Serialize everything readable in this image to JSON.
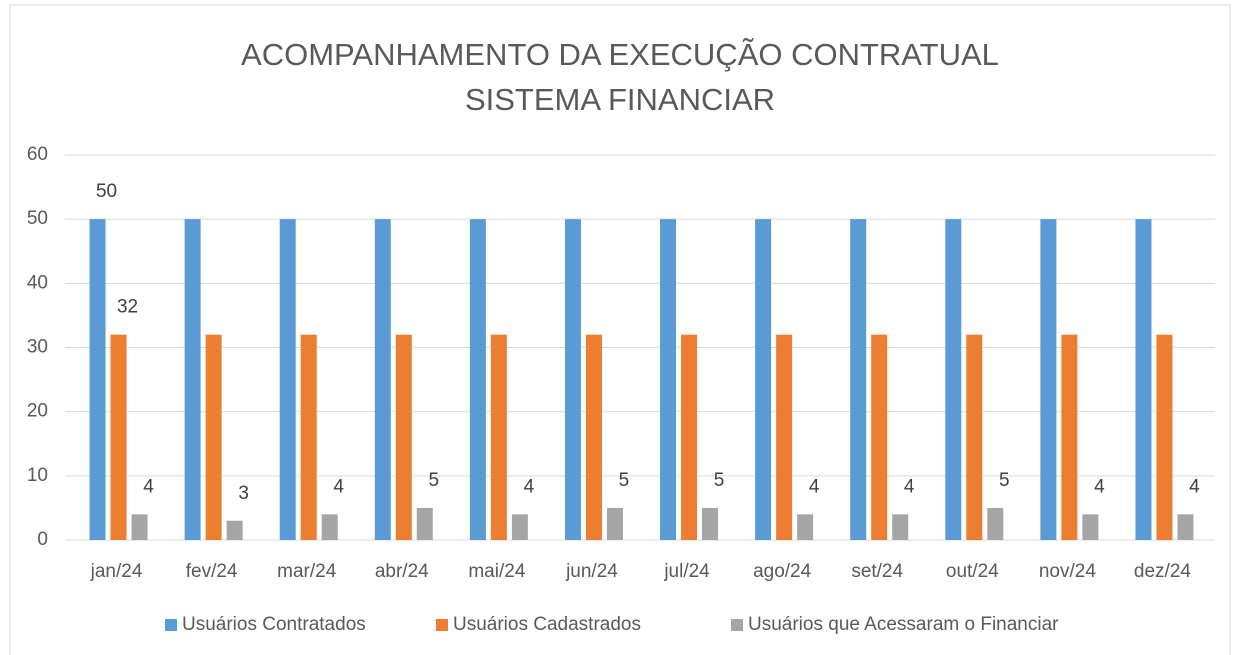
{
  "chart_data": {
    "type": "bar",
    "title": [
      "ACOMPANHAMENTO DA EXECUÇÃO CONTRATUAL",
      "SISTEMA FINANCIAR"
    ],
    "categories": [
      "jan/24",
      "fev/24",
      "mar/24",
      "abr/24",
      "mai/24",
      "jun/24",
      "jul/24",
      "ago/24",
      "set/24",
      "out/24",
      "nov/24",
      "dez/24"
    ],
    "series": [
      {
        "name": "Usuários Contratados",
        "color": "#5b9bd5",
        "data_labels": "first",
        "values": [
          50,
          50,
          50,
          50,
          50,
          50,
          50,
          50,
          50,
          50,
          50,
          50
        ]
      },
      {
        "name": "Usuários Cadastrados",
        "color": "#ed7d31",
        "data_labels": "first",
        "values": [
          32,
          32,
          32,
          32,
          32,
          32,
          32,
          32,
          32,
          32,
          32,
          32
        ]
      },
      {
        "name": "Usuários que Acessaram o Financiar",
        "color": "#a5a5a5",
        "data_labels": "all",
        "values": [
          4,
          3,
          4,
          5,
          4,
          5,
          5,
          4,
          4,
          5,
          4,
          4
        ]
      }
    ],
    "ylim": [
      0,
      60
    ],
    "yticks": [
      0,
      10,
      20,
      30,
      40,
      50,
      60
    ],
    "grid": true,
    "legend": "bottom"
  }
}
